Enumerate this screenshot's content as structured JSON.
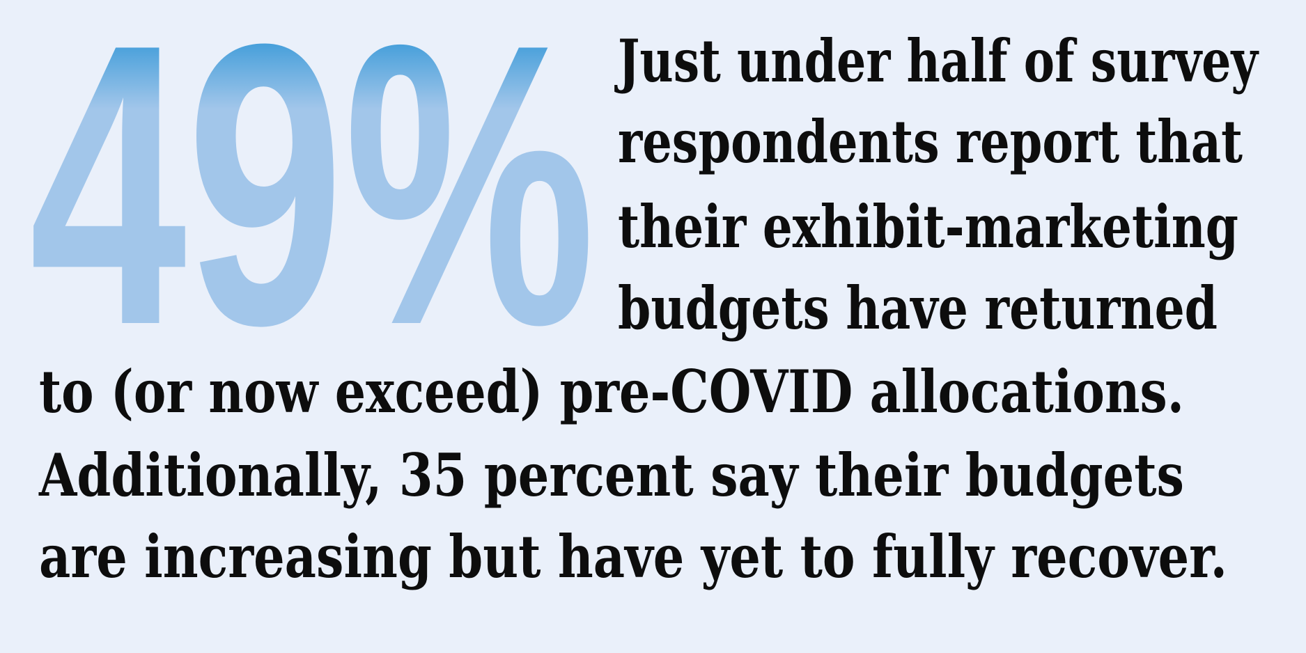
{
  "stat": "49%",
  "lines": [
    "Just under half of survey",
    "respondents report that",
    "their exhibit-marketing",
    "budgets have returned",
    "to (or now exceed) pre-COVID allocations.",
    "Additionally, 35 percent say their budgets",
    "are increasing but have yet to fully recover."
  ]
}
